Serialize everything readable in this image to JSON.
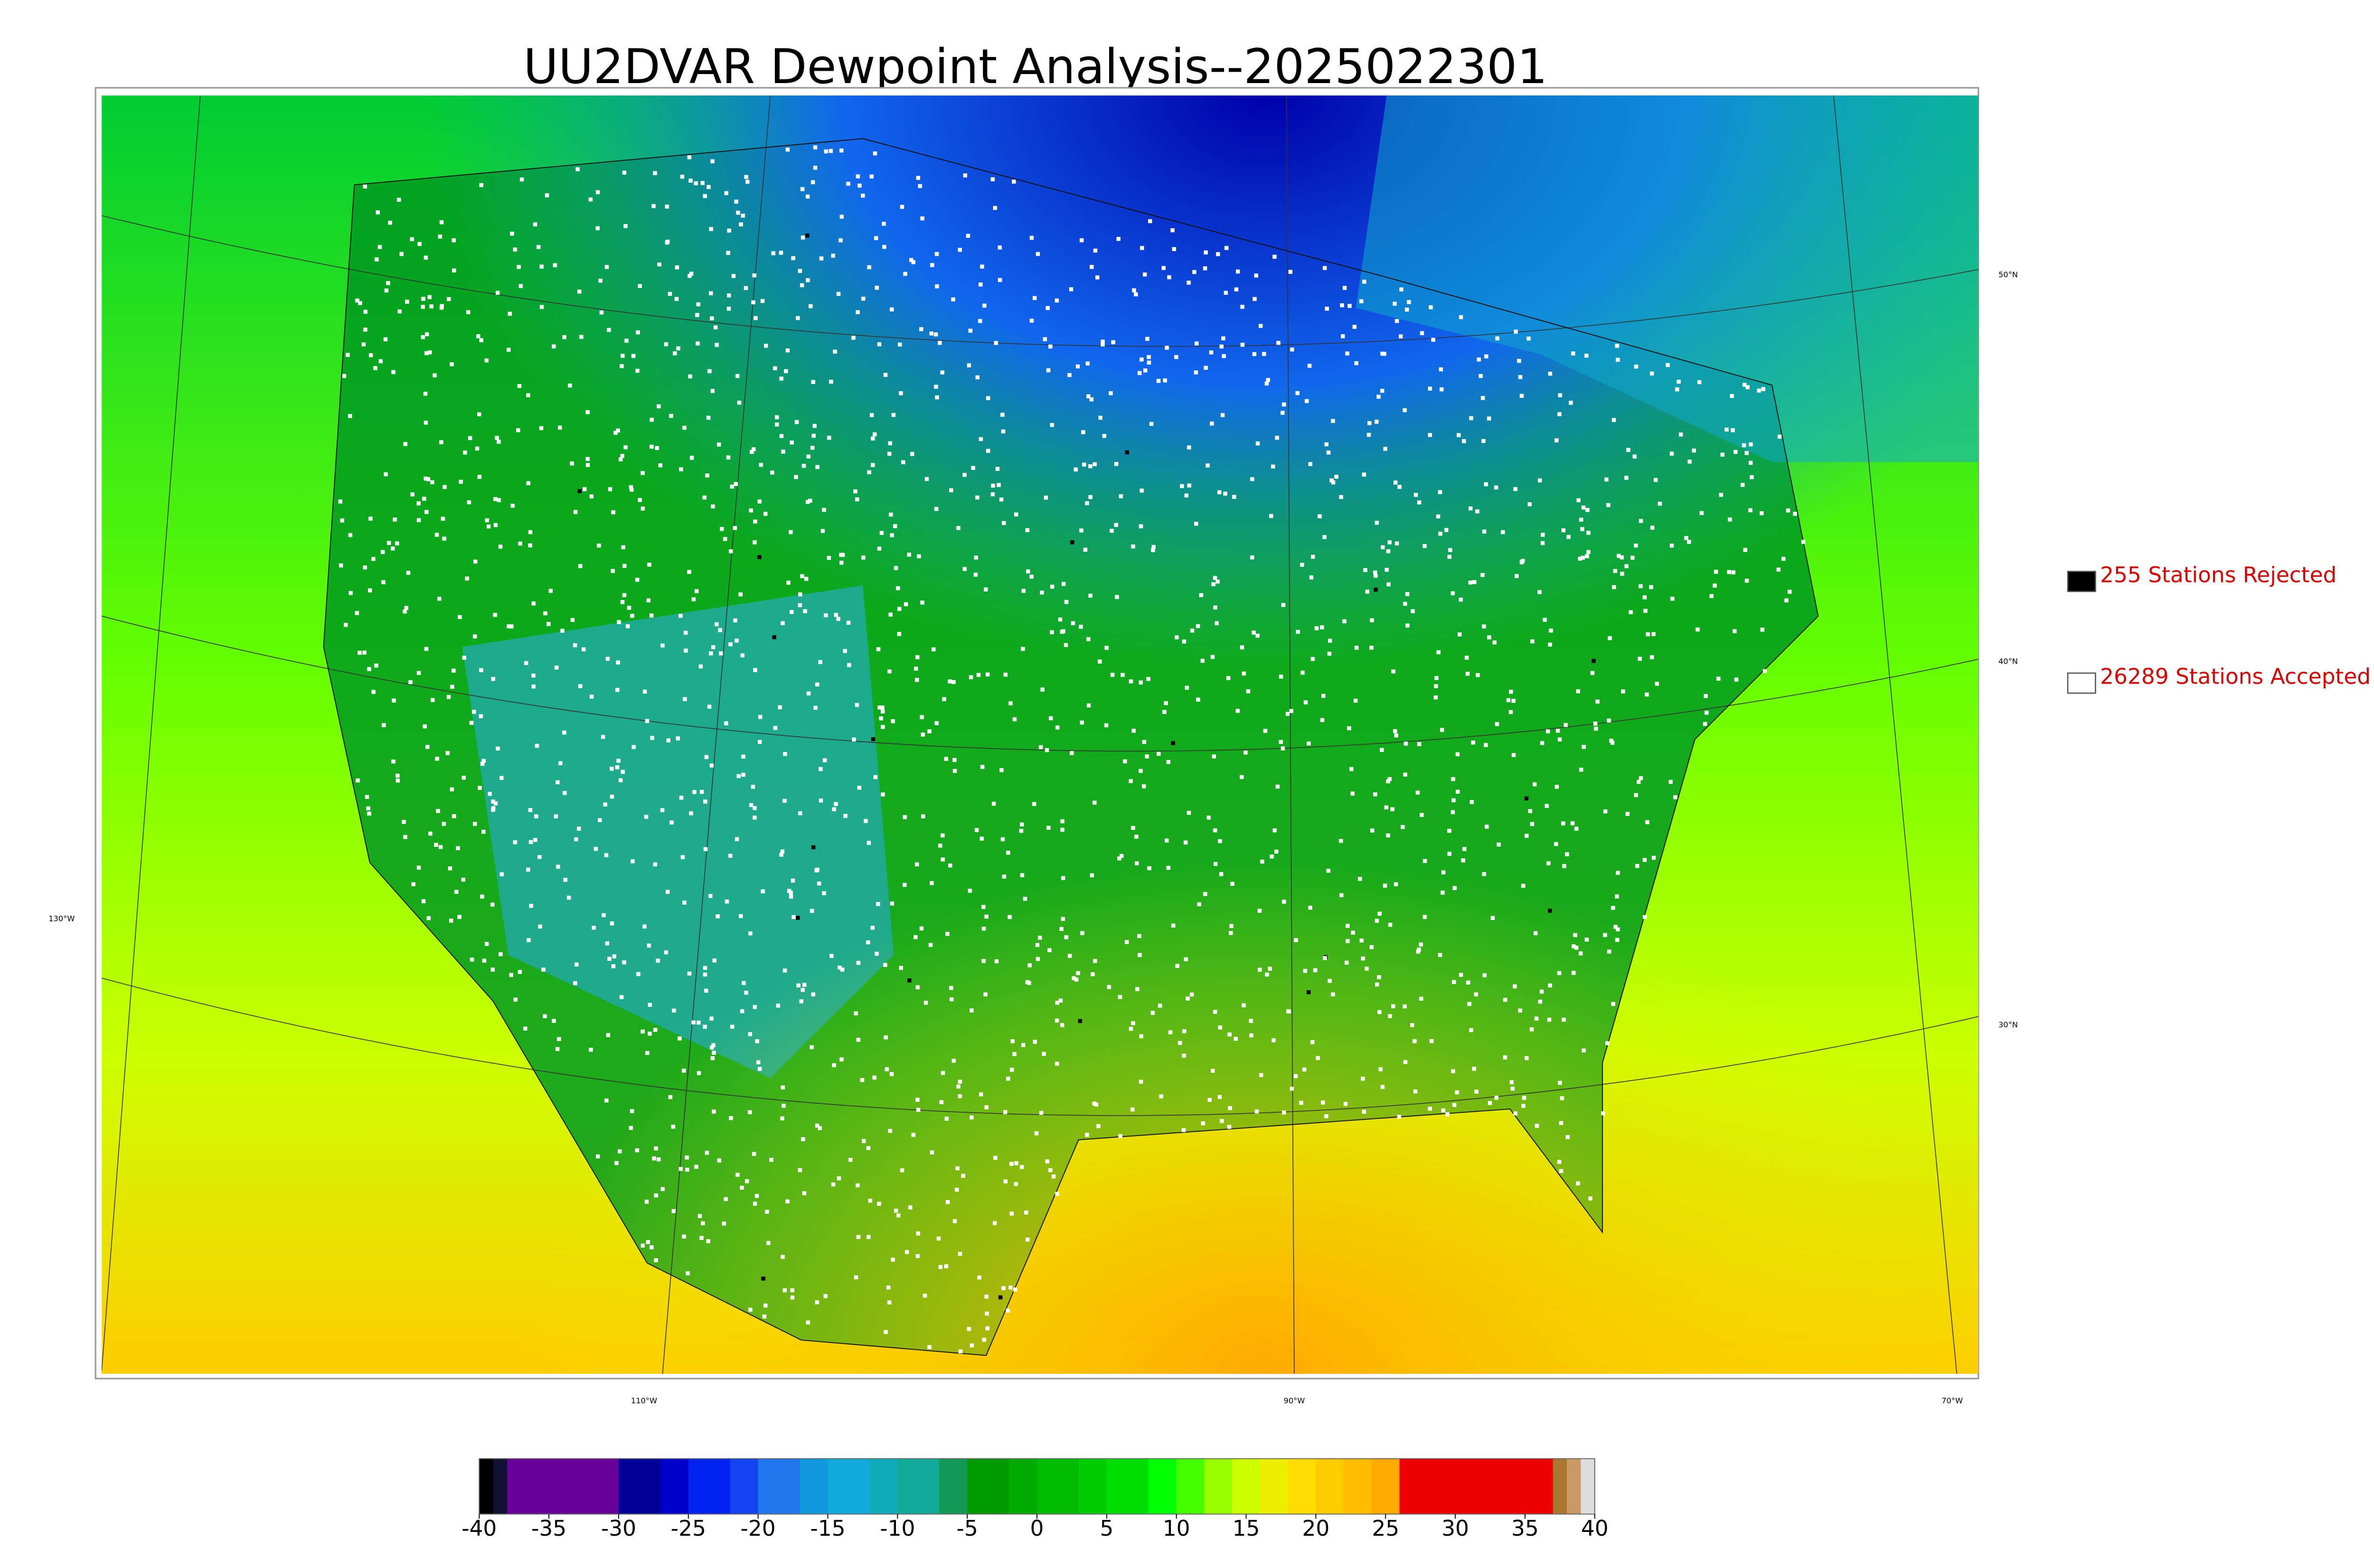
{
  "title": "UU2DVAR Dewpoint Analysis--2025022301",
  "legend": [
    {
      "label": "255 Stations Rejected",
      "color": "#000000"
    },
    {
      "label": "26289 Stations Accepted",
      "color": "#ffffff"
    }
  ],
  "graticule": {
    "latitudes": [
      "50°N",
      "40°N",
      "30°N"
    ],
    "longitudes": [
      "130°W",
      "110°W",
      "90°W",
      "70°W"
    ]
  },
  "colorbar": {
    "lim": [
      -40,
      40
    ],
    "ticks": [
      -40,
      -35,
      -30,
      -25,
      -20,
      -15,
      -10,
      -5,
      0,
      5,
      10,
      15,
      20,
      25,
      30,
      35,
      40
    ],
    "stops": [
      {
        "value": -40,
        "color": "#000000"
      },
      {
        "value": -39,
        "color": "#111133"
      },
      {
        "value": -38,
        "color": "#660099"
      },
      {
        "value": -30,
        "color": "#000099"
      },
      {
        "value": -27,
        "color": "#0000cc"
      },
      {
        "value": -25,
        "color": "#0022ee"
      },
      {
        "value": -22,
        "color": "#1144ee"
      },
      {
        "value": -20,
        "color": "#2277ee"
      },
      {
        "value": -17,
        "color": "#1199dd"
      },
      {
        "value": -15,
        "color": "#11aadd"
      },
      {
        "value": -12,
        "color": "#11aabb"
      },
      {
        "value": -10,
        "color": "#11aa99"
      },
      {
        "value": -7,
        "color": "#119955"
      },
      {
        "value": -5,
        "color": "#009900"
      },
      {
        "value": -2,
        "color": "#00aa00"
      },
      {
        "value": 0,
        "color": "#00bb00"
      },
      {
        "value": 3,
        "color": "#00cc00"
      },
      {
        "value": 5,
        "color": "#00dd00"
      },
      {
        "value": 8,
        "color": "#00ff00"
      },
      {
        "value": 10,
        "color": "#44ff00"
      },
      {
        "value": 12,
        "color": "#99ff00"
      },
      {
        "value": 14,
        "color": "#ccff00"
      },
      {
        "value": 16,
        "color": "#eeee00"
      },
      {
        "value": 18,
        "color": "#ffdd00"
      },
      {
        "value": 20,
        "color": "#ffcc00"
      },
      {
        "value": 22,
        "color": "#ffbb00"
      },
      {
        "value": 24,
        "color": "#ffaa00"
      },
      {
        "value": 26,
        "color": "#ee0000"
      },
      {
        "value": 37,
        "color": "#aa7733"
      },
      {
        "value": 38,
        "color": "#cc9966"
      },
      {
        "value": 39,
        "color": "#dddddd"
      }
    ]
  }
}
